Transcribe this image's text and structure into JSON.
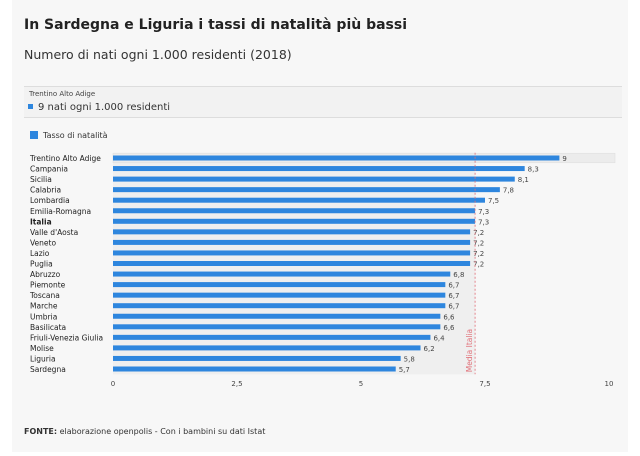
{
  "title": "In Sardegna e Liguria i tassi di natalità più bassi",
  "subtitle": "Numero di nati ogni 1.000 residenti (2018)",
  "tooltip": {
    "name": "Trentino Alto Adige",
    "value": "9 nati ogni 1.000 residenti"
  },
  "source": {
    "label": "FONTE:",
    "text": " elaborazione openpolis - Con i bambini su dati Istat"
  },
  "colors": {
    "bar": "#2e86de",
    "reference": "#e06c75",
    "highlight_bg": "#ececec"
  },
  "chart_data": {
    "type": "bar",
    "orientation": "horizontal",
    "legend": {
      "position": "top-left",
      "entries": [
        "Tasso di natalità"
      ]
    },
    "categories": [
      "Trentino Alto Adige",
      "Campania",
      "Sicilia",
      "Calabria",
      "Lombardia",
      "Emilia-Romagna",
      "Italia",
      "Valle d'Aosta",
      "Veneto",
      "Lazio",
      "Puglia",
      "Abruzzo",
      "Piemonte",
      "Toscana",
      "Marche",
      "Umbria",
      "Basilicata",
      "Friuli-Venezia Giulia",
      "Molise",
      "Liguria",
      "Sardegna"
    ],
    "bold_categories": [
      "Italia"
    ],
    "series": [
      {
        "name": "Tasso di natalità",
        "values": [
          9,
          8.3,
          8.1,
          7.8,
          7.5,
          7.3,
          7.3,
          7.2,
          7.2,
          7.2,
          7.2,
          6.8,
          6.7,
          6.7,
          6.7,
          6.6,
          6.6,
          6.4,
          6.2,
          5.8,
          5.7
        ]
      }
    ],
    "data_labels": [
      "9",
      "8,3",
      "8,1",
      "7,8",
      "7,5",
      "7,3",
      "7,3",
      "7,2",
      "7,2",
      "7,2",
      "7,2",
      "6,8",
      "6,7",
      "6,7",
      "6,7",
      "6,6",
      "6,6",
      "6,4",
      "6,2",
      "5,8",
      "5,7"
    ],
    "xlim": [
      0,
      10
    ],
    "x_ticks": [
      0,
      2.5,
      5,
      7.5,
      10
    ],
    "x_tick_labels": [
      "0",
      "2,5",
      "5",
      "7,5",
      "10"
    ],
    "reference_line": {
      "value": 7.3,
      "label": "Media Italia"
    },
    "highlighted_category": "Trentino Alto Adige",
    "grid": false
  }
}
